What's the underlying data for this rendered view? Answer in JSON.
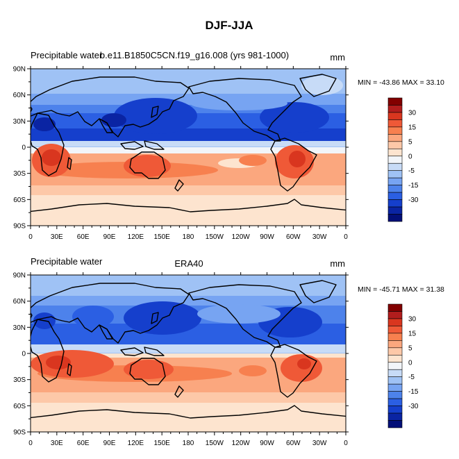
{
  "figure_title": "DJF-JJA",
  "lat_ticks": [
    "90N",
    "60N",
    "30N",
    "0",
    "30S",
    "60S",
    "90S"
  ],
  "lon_ticks": [
    "0",
    "30E",
    "60E",
    "90E",
    "120E",
    "150E",
    "180",
    "150W",
    "120W",
    "90W",
    "60W",
    "30W",
    "0"
  ],
  "colorbar_labels": [
    "30",
    "15",
    "5",
    "0",
    "-5",
    "-15",
    "-30"
  ],
  "colors": {
    "levels": [
      "#820000",
      "#b21d1d",
      "#d9361f",
      "#ef5937",
      "#f7804f",
      "#fba77e",
      "#fdc8a8",
      "#fde4cf",
      "#f2f5f9",
      "#c7dbf7",
      "#9fc2f5",
      "#77a4f2",
      "#4d82eb",
      "#2b5fe3",
      "#153fcc",
      "#0a24a3",
      "#030f78"
    ],
    "ocean_default": "#f2f5f9",
    "coastline": "#000000"
  },
  "panels": [
    {
      "left_label": "Precipitable water",
      "center_label": "b.e11.B1850C5CN.f19_g16.008 (yrs 981-1000)",
      "units": "mm",
      "stats": "MIN = -43.86 MAX =  33.10"
    },
    {
      "left_label": "Precipitable water",
      "center_label": "ERA40",
      "units": "mm",
      "stats": "MIN = -45.71 MAX = 31.38"
    }
  ]
}
